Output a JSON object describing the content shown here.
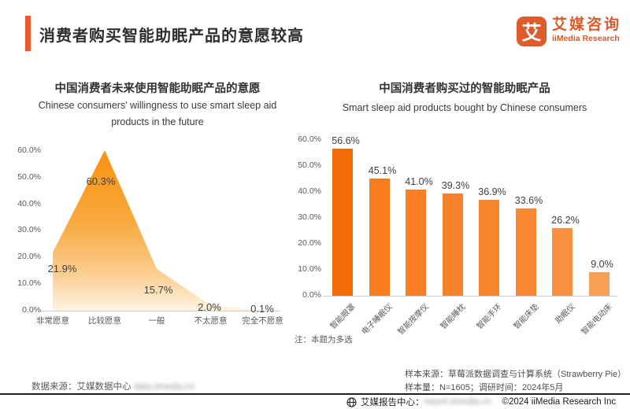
{
  "header": {
    "title": "消费者购买智能助眠产品的意愿较高",
    "logo": {
      "glyph": "艾",
      "name_cn": "艾媒咨询",
      "name_en": "iiMedia Research"
    }
  },
  "chart_data": [
    {
      "type": "area",
      "title": "中国消费者未来使用智能助眠产品的意愿",
      "subtitle": "Chinese consumers' willingness to use smart sleep aid products in the future",
      "categories": [
        "非常愿意",
        "比较愿意",
        "一般",
        "不太愿意",
        "完全不愿意"
      ],
      "values": [
        21.9,
        60.3,
        15.7,
        2.0,
        0.1
      ],
      "value_labels": [
        "21.9%",
        "60.3%",
        "15.7%",
        "2.0%",
        "0.1%"
      ],
      "ylim": [
        0,
        60
      ],
      "yticks": [
        "60.0%",
        "50.0%",
        "40.0%",
        "30.0%",
        "20.0%",
        "10.0%",
        "0.0%"
      ],
      "grid": false,
      "legend": "none",
      "area_gradient": [
        "#F79210",
        "#F8A93F",
        "#FBCF93",
        "#FEF3E2"
      ]
    },
    {
      "type": "bar",
      "title": "中国消费者购买过的智能助眠产品",
      "subtitle": "Smart sleep aid products bought by Chinese consumers",
      "categories": [
        "智能眼罩",
        "电子睡眠仪",
        "智能按摩仪",
        "智能睡枕",
        "智能手环",
        "智能床垫",
        "助眠仪",
        "智能电动床"
      ],
      "values": [
        56.6,
        45.1,
        41.0,
        39.3,
        36.9,
        33.6,
        26.2,
        9.0
      ],
      "value_labels": [
        "56.6%",
        "45.1%",
        "41.0%",
        "39.3%",
        "36.9%",
        "33.6%",
        "26.2%",
        "9.0%"
      ],
      "bar_colors": [
        "#F36A07",
        "#F87C1E",
        "#F87F24",
        "#F88229",
        "#F8852D",
        "#F88831",
        "#F89040",
        "#F9A057"
      ],
      "ylim": [
        0,
        60
      ],
      "yticks": [
        "60.0%",
        "50.0%",
        "40.0%",
        "30.0%",
        "20.0%",
        "10.0%",
        "0.0%"
      ],
      "grid": false,
      "note": "注：本题为多选"
    }
  ],
  "footer": {
    "data_source_label": "数据来源：艾媒数据中心",
    "data_source_url": "data.iimedia.cn",
    "sample_source": "样本来源：草莓派数据调查与计算系统（Strawberry Pie）",
    "sample_info": "样本量：N=1605；调研时间：2024年5月",
    "report_center_label": "艾媒报告中心：",
    "report_center_url": "report.iimedia.cn",
    "copyright": "©2024   iiMedia Research Inc"
  },
  "colors": {
    "accent": "#EE5A2B",
    "brand": "#D75A2B",
    "axis_text": "#595959",
    "title_text": "#333333"
  }
}
